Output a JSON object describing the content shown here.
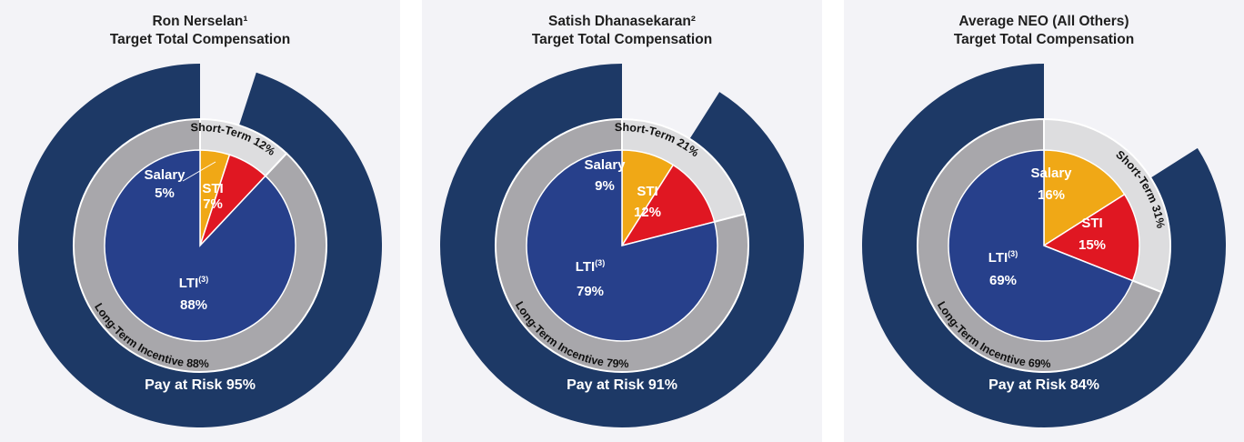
{
  "colors": {
    "pay_at_risk": "#1d3966",
    "long_term_ring": "#a8a7ab",
    "short_term_ring": "#dddddf",
    "ring_border": "#ffffff",
    "salary": "#f0a816",
    "sti": "#e01722",
    "lti": "#27408b",
    "panel_bg": "#f3f3f7",
    "white_text": "#ffffff",
    "dark_text": "#111111"
  },
  "chart_data": [
    {
      "type": "pie",
      "title_lines": [
        "Ron Nerselan¹",
        "Target Total Compensation"
      ],
      "inner": [
        {
          "label": "Salary",
          "value": 5,
          "value_text": "5%"
        },
        {
          "label": "STI",
          "value": 7,
          "value_text": "7%"
        },
        {
          "label": "LTI",
          "label_sup": "(3)",
          "value": 88,
          "value_text": "88%"
        }
      ],
      "middle": [
        {
          "label": "Short-Term 12%",
          "value": 12
        },
        {
          "label": "Long-Term Incentive 88%",
          "value": 88
        }
      ],
      "outer": {
        "label": "Pay at Risk 95%",
        "value": 95
      }
    },
    {
      "type": "pie",
      "title_lines": [
        "Satish Dhanasekaran²",
        "Target Total Compensation"
      ],
      "inner": [
        {
          "label": "Salary",
          "value": 9,
          "value_text": "9%"
        },
        {
          "label": "STI",
          "value": 12,
          "value_text": "12%"
        },
        {
          "label": "LTI",
          "label_sup": "(3)",
          "value": 79,
          "value_text": "79%"
        }
      ],
      "middle": [
        {
          "label": "Short-Term 21%",
          "value": 21
        },
        {
          "label": "Long-Term Incentive 79%",
          "value": 79
        }
      ],
      "outer": {
        "label": "Pay at Risk 91%",
        "value": 91
      }
    },
    {
      "type": "pie",
      "title_lines": [
        "Average NEO (All Others)",
        "Target Total Compensation"
      ],
      "inner": [
        {
          "label": "Salary",
          "value": 16,
          "value_text": "16%"
        },
        {
          "label": "STI",
          "value": 15,
          "value_text": "15%"
        },
        {
          "label": "LTI",
          "label_sup": "(3)",
          "value": 69,
          "value_text": "69%"
        }
      ],
      "middle": [
        {
          "label": "Short-Term 31%",
          "value": 31
        },
        {
          "label": "Long-Term Incentive 69%",
          "value": 69
        }
      ],
      "outer": {
        "label": "Pay at Risk 84%",
        "value": 84
      }
    }
  ]
}
